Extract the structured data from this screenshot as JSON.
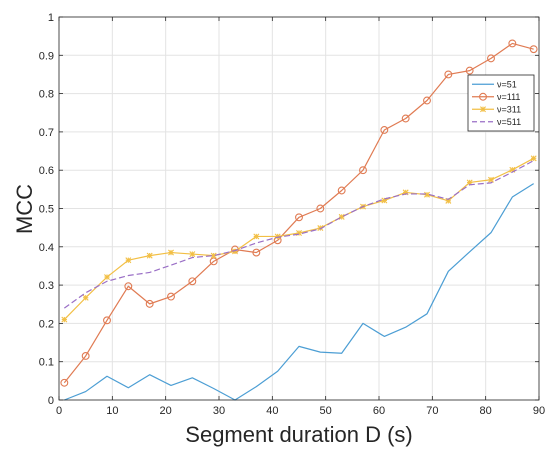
{
  "chart_data": {
    "type": "line",
    "title": "",
    "xlabel": "Segment duration D (s)",
    "ylabel": "MCC",
    "xlim": [
      0,
      90
    ],
    "ylim": [
      0,
      1
    ],
    "xticks": [
      0,
      10,
      20,
      30,
      40,
      50,
      60,
      70,
      80,
      90
    ],
    "yticks": [
      0,
      0.1,
      0.2,
      0.3,
      0.4,
      0.5,
      0.6,
      0.7,
      0.8,
      0.9,
      1
    ],
    "xtick_labels": [
      "0",
      "10",
      "20",
      "30",
      "40",
      "50",
      "60",
      "70",
      "80",
      "90"
    ],
    "ytick_labels": [
      "0",
      "0.1",
      "0.2",
      "0.3",
      "0.4",
      "0.5",
      "0.6",
      "0.7",
      "0.8",
      "0.9",
      "1"
    ],
    "grid": true,
    "legend_position": "right",
    "series": [
      {
        "name": "ν=51",
        "color": "#4C9ED4",
        "marker": "none",
        "dash": "solid",
        "x": [
          1,
          5,
          9,
          13,
          17,
          21,
          25,
          29,
          33,
          37,
          41,
          45,
          49,
          53,
          57,
          61,
          65,
          69,
          73,
          77,
          81,
          85,
          89
        ],
        "y": [
          0.0,
          0.022,
          0.062,
          0.032,
          0.066,
          0.038,
          0.058,
          0.03,
          0.0,
          0.035,
          0.075,
          0.14,
          0.125,
          0.122,
          0.2,
          0.166,
          0.19,
          0.225,
          0.336,
          0.387,
          0.437,
          0.53,
          0.565
        ]
      },
      {
        "name": "ν=111",
        "color": "#E07B53",
        "marker": "circle",
        "dash": "solid",
        "x": [
          1,
          5,
          9,
          13,
          17,
          21,
          25,
          29,
          33,
          37,
          41,
          45,
          49,
          53,
          57,
          61,
          65,
          69,
          73,
          77,
          81,
          85,
          89
        ],
        "y": [
          0.045,
          0.115,
          0.208,
          0.297,
          0.251,
          0.27,
          0.31,
          0.362,
          0.393,
          0.385,
          0.417,
          0.477,
          0.5,
          0.547,
          0.6,
          0.705,
          0.735,
          0.782,
          0.85,
          0.86,
          0.892,
          0.931,
          0.916
        ]
      },
      {
        "name": "ν=311",
        "color": "#F2BF45",
        "marker": "x",
        "dash": "solid",
        "x": [
          1,
          5,
          9,
          13,
          17,
          21,
          25,
          29,
          33,
          37,
          41,
          45,
          49,
          53,
          57,
          61,
          65,
          69,
          73,
          77,
          81,
          85,
          89
        ],
        "y": [
          0.21,
          0.267,
          0.321,
          0.365,
          0.377,
          0.385,
          0.381,
          0.377,
          0.388,
          0.427,
          0.427,
          0.436,
          0.449,
          0.478,
          0.505,
          0.521,
          0.542,
          0.536,
          0.52,
          0.568,
          0.575,
          0.601,
          0.631
        ]
      },
      {
        "name": "ν=511",
        "color": "#9A6FC6",
        "marker": "none",
        "dash": "dashed",
        "x": [
          1,
          5,
          9,
          13,
          17,
          21,
          25,
          29,
          33,
          37,
          41,
          45,
          49,
          53,
          57,
          61,
          65,
          69,
          73,
          77,
          81,
          85,
          89
        ],
        "y": [
          0.24,
          0.28,
          0.31,
          0.325,
          0.333,
          0.352,
          0.372,
          0.377,
          0.39,
          0.41,
          0.425,
          0.433,
          0.447,
          0.478,
          0.505,
          0.525,
          0.538,
          0.538,
          0.524,
          0.562,
          0.567,
          0.595,
          0.625
        ]
      }
    ]
  }
}
